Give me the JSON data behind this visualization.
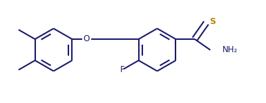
{
  "bg_color": "#ffffff",
  "bond_color": "#1a1a6e",
  "atom_color_S": "#b8860b",
  "lw": 1.5,
  "figsize": [
    3.85,
    1.5
  ],
  "dpi": 100,
  "xlim": [
    0,
    7.7
  ],
  "ylim": [
    0,
    3.0
  ]
}
